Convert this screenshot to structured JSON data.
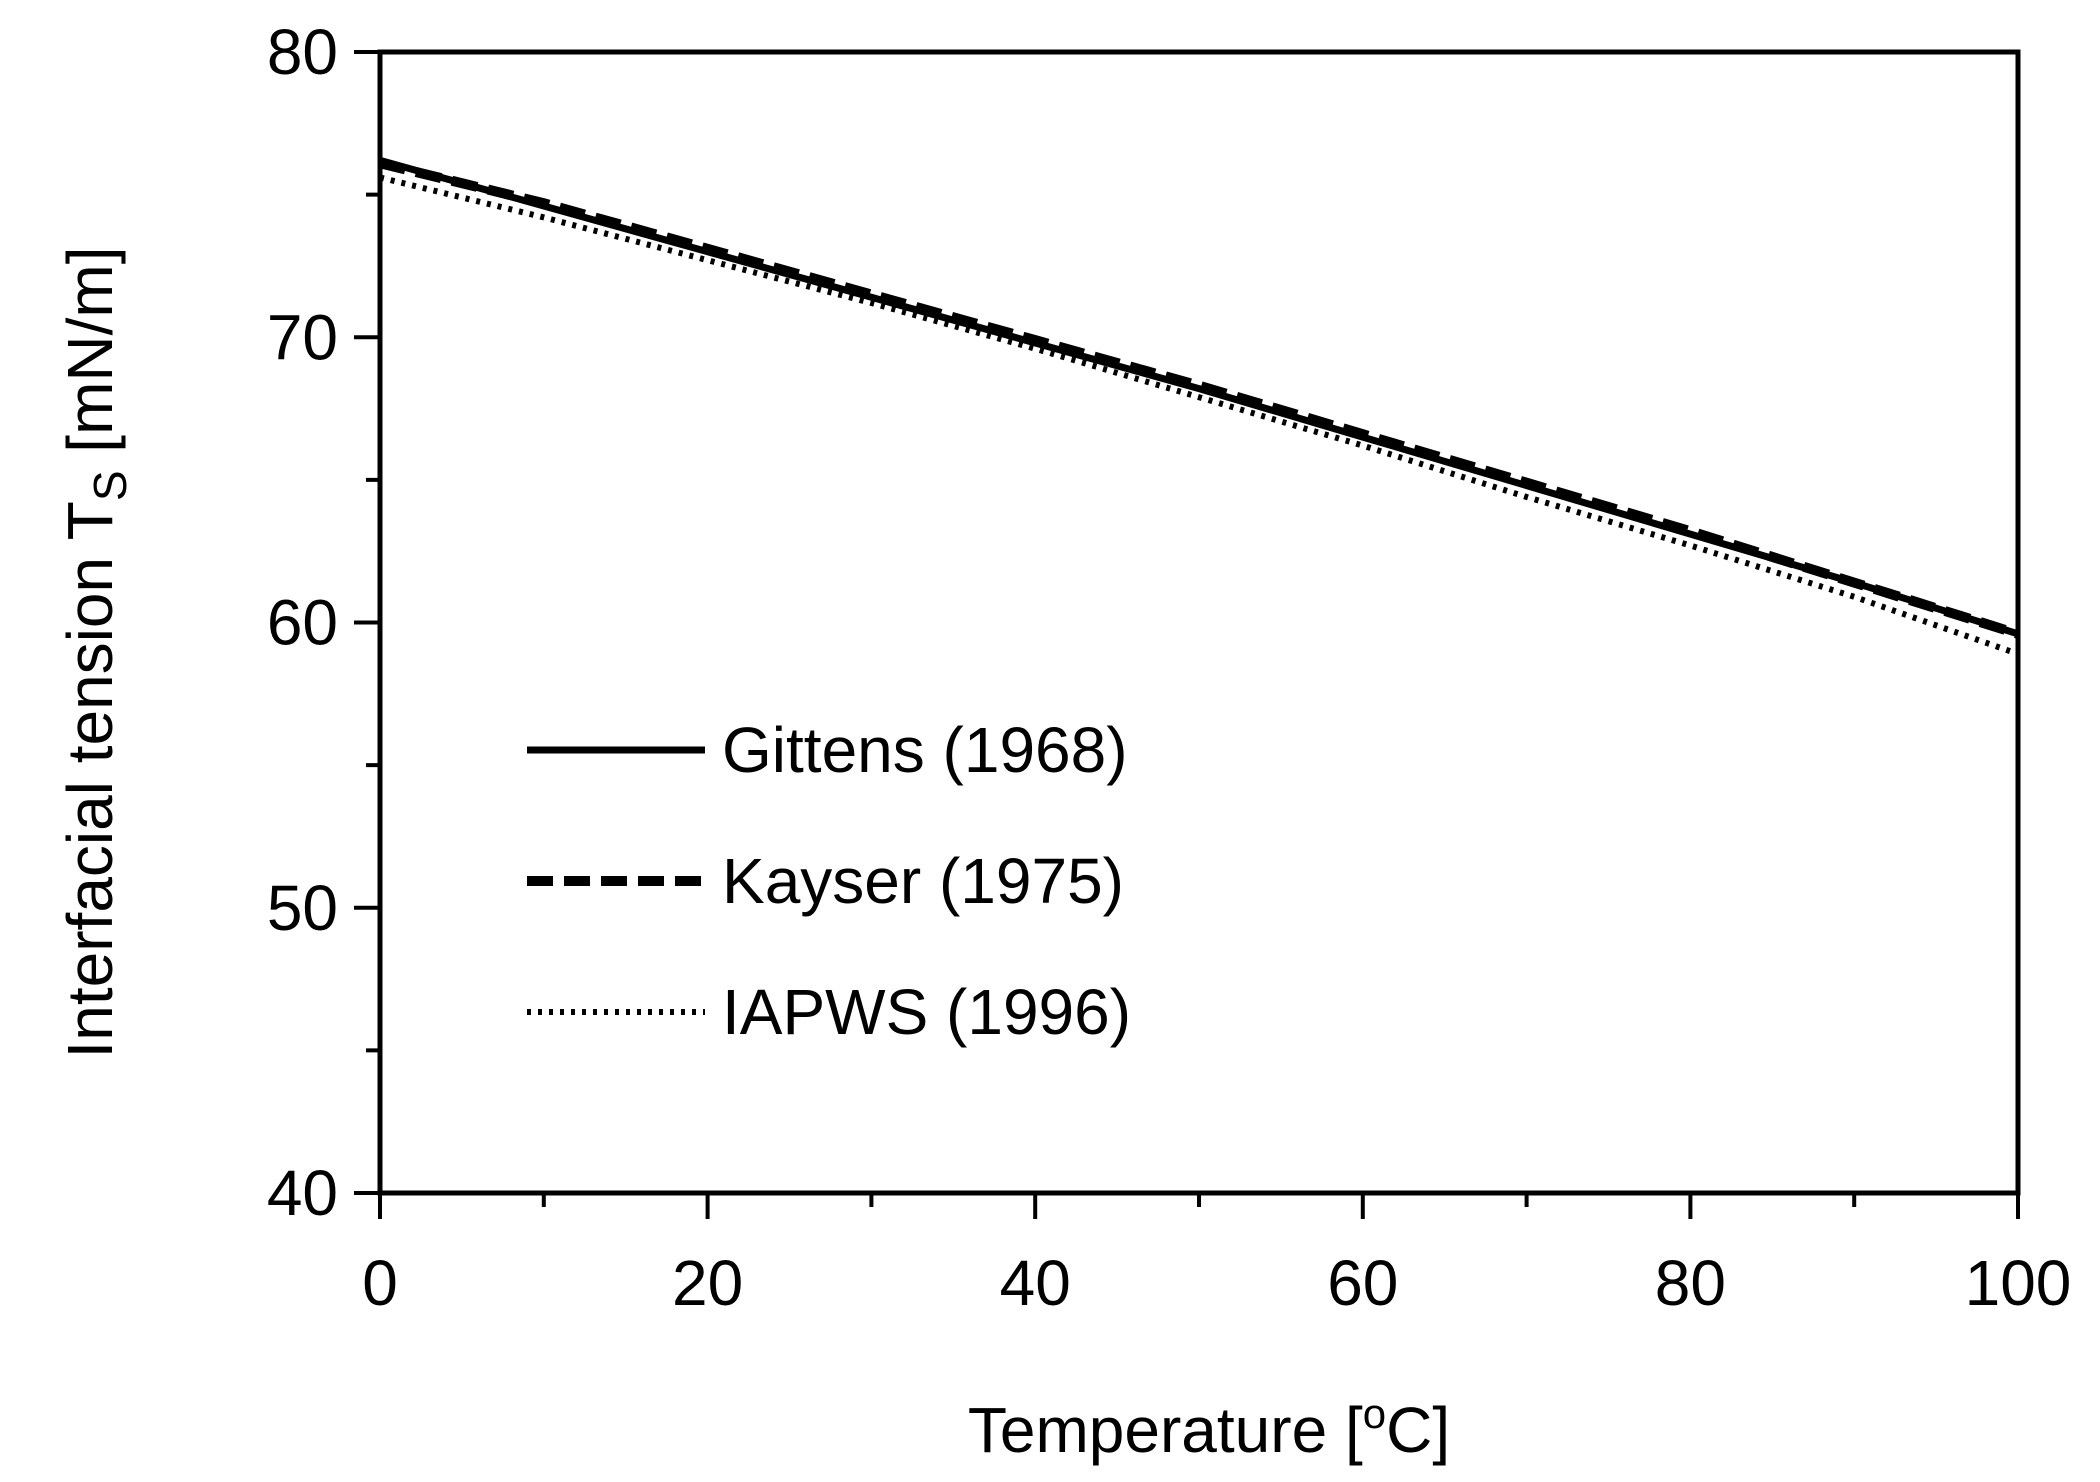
{
  "chart_data": {
    "type": "line",
    "title": "",
    "xlabel": {
      "prefix": "Temperature [",
      "superscript": "o",
      "suffix": "C]"
    },
    "ylabel": {
      "prefix": "Interfacial tension T",
      "subscript": "S",
      "suffix": " [mN/m]"
    },
    "xlim": [
      0,
      100
    ],
    "ylim": [
      40,
      80
    ],
    "x_major_ticks": [
      0,
      20,
      40,
      60,
      80,
      100
    ],
    "x_tick_labels": [
      "0",
      "20",
      "40",
      "60",
      "80",
      "100"
    ],
    "x_minor_ticks": [
      10,
      30,
      50,
      70,
      90
    ],
    "y_major_ticks": [
      40,
      50,
      60,
      70,
      80
    ],
    "y_tick_labels": [
      "40",
      "50",
      "60",
      "70",
      "80"
    ],
    "y_minor_ticks": [
      45,
      55,
      65,
      75
    ],
    "grid": false,
    "legend_position": "center-left",
    "x": [
      0,
      10,
      20,
      30,
      40,
      50,
      60,
      70,
      80,
      90,
      100
    ],
    "series": [
      {
        "name": "Gittens (1968)",
        "style": "solid",
        "values": [
          76.2,
          74.6,
          73.0,
          71.4,
          69.8,
          68.2,
          66.5,
          64.8,
          63.1,
          61.4,
          59.6
        ]
      },
      {
        "name": "Kayser (1975)",
        "style": "dashed",
        "values": [
          76.1,
          74.7,
          73.1,
          71.5,
          69.9,
          68.3,
          66.6,
          64.9,
          63.2,
          61.4,
          59.6
        ]
      },
      {
        "name": "IAPWS (1996)",
        "style": "dotted",
        "values": [
          75.6,
          74.2,
          72.7,
          71.2,
          69.6,
          67.9,
          66.2,
          64.4,
          62.7,
          60.9,
          58.9
        ]
      }
    ]
  }
}
